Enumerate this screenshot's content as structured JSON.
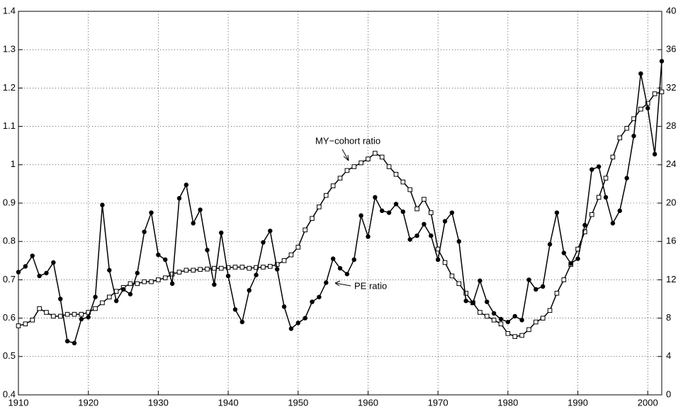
{
  "chart_data": {
    "type": "line",
    "x": [
      1910,
      1911,
      1912,
      1913,
      1914,
      1915,
      1916,
      1917,
      1918,
      1919,
      1920,
      1921,
      1922,
      1923,
      1924,
      1925,
      1926,
      1927,
      1928,
      1929,
      1930,
      1931,
      1932,
      1933,
      1934,
      1935,
      1936,
      1937,
      1938,
      1939,
      1940,
      1941,
      1942,
      1943,
      1944,
      1945,
      1946,
      1947,
      1948,
      1949,
      1950,
      1951,
      1952,
      1953,
      1954,
      1955,
      1956,
      1957,
      1958,
      1959,
      1960,
      1961,
      1962,
      1963,
      1964,
      1965,
      1966,
      1967,
      1968,
      1969,
      1970,
      1971,
      1972,
      1973,
      1974,
      1975,
      1976,
      1977,
      1978,
      1979,
      1980,
      1981,
      1982,
      1983,
      1984,
      1985,
      1986,
      1987,
      1988,
      1989,
      1990,
      1991,
      1992,
      1993,
      1994,
      1995,
      1996,
      1997,
      1998,
      1999,
      2000,
      2001,
      2002
    ],
    "series": [
      {
        "name": "MY-cohort ratio",
        "color": "#000000",
        "marker": "square",
        "axis": "y",
        "values": [
          0.58,
          0.585,
          0.595,
          0.625,
          0.615,
          0.605,
          0.605,
          0.61,
          0.61,
          0.61,
          0.615,
          0.625,
          0.64,
          0.655,
          0.67,
          0.68,
          0.69,
          0.69,
          0.695,
          0.695,
          0.7,
          0.705,
          0.715,
          0.72,
          0.725,
          0.725,
          0.727,
          0.728,
          0.73,
          0.73,
          0.732,
          0.733,
          0.733,
          0.73,
          0.732,
          0.733,
          0.735,
          0.74,
          0.75,
          0.765,
          0.785,
          0.83,
          0.86,
          0.89,
          0.92,
          0.945,
          0.965,
          0.985,
          0.995,
          1.005,
          1.015,
          1.03,
          1.02,
          0.995,
          0.975,
          0.955,
          0.935,
          0.885,
          0.91,
          0.875,
          0.78,
          0.745,
          0.71,
          0.69,
          0.665,
          0.64,
          0.615,
          0.605,
          0.595,
          0.585,
          0.56,
          0.552,
          0.555,
          0.57,
          0.59,
          0.6,
          0.62,
          0.665,
          0.7,
          0.74,
          0.78,
          0.825,
          0.87,
          0.915,
          0.965,
          1.02,
          1.07,
          1.095,
          1.12,
          1.145,
          1.16,
          1.185,
          1.19
        ]
      },
      {
        "name": "PE ratio",
        "color": "#000000",
        "marker": "circle",
        "axis": "y2",
        "values": [
          12.8,
          13.4,
          14.5,
          12.4,
          12.7,
          13.8,
          10.0,
          5.6,
          5.4,
          7.9,
          8.1,
          10.2,
          19.8,
          13.0,
          9.8,
          11.0,
          10.5,
          12.7,
          17.0,
          19.0,
          14.6,
          14.1,
          11.6,
          20.5,
          21.9,
          17.9,
          19.3,
          15.1,
          11.5,
          16.9,
          12.4,
          8.9,
          7.6,
          10.9,
          12.5,
          15.9,
          17.1,
          13.1,
          9.2,
          6.9,
          7.5,
          8.0,
          9.7,
          10.2,
          11.7,
          14.2,
          13.2,
          12.6,
          14.1,
          18.7,
          16.5,
          20.6,
          19.2,
          19.0,
          19.9,
          19.1,
          16.2,
          16.6,
          17.8,
          16.6,
          14.1,
          18.1,
          19.0,
          16.0,
          9.8,
          9.6,
          11.9,
          9.7,
          8.5,
          7.9,
          7.6,
          8.2,
          7.8,
          12.0,
          11.0,
          11.3,
          15.7,
          19.0,
          14.8,
          13.7,
          14.2,
          17.7,
          23.5,
          23.8,
          20.6,
          17.9,
          19.2,
          22.6,
          27.0,
          33.5,
          29.9,
          25.1,
          34.8
        ]
      }
    ],
    "annotations": [
      {
        "text": "MY−cohort ratio"
      },
      {
        "text": "PE ratio"
      }
    ],
    "xlim": [
      1910,
      2002
    ],
    "xticks": [
      1910,
      1920,
      1930,
      1940,
      1950,
      1960,
      1970,
      1980,
      1990,
      2000
    ],
    "ylim": [
      0.4,
      1.4
    ],
    "yticks": [
      0.4,
      0.5,
      0.6,
      0.7,
      0.8,
      0.9,
      1,
      1.1,
      1.2,
      1.3,
      1.4
    ],
    "y2lim": [
      0,
      40
    ],
    "y2ticks": [
      0,
      4,
      8,
      12,
      16,
      20,
      24,
      28,
      32,
      36,
      40
    ],
    "grid": true
  }
}
